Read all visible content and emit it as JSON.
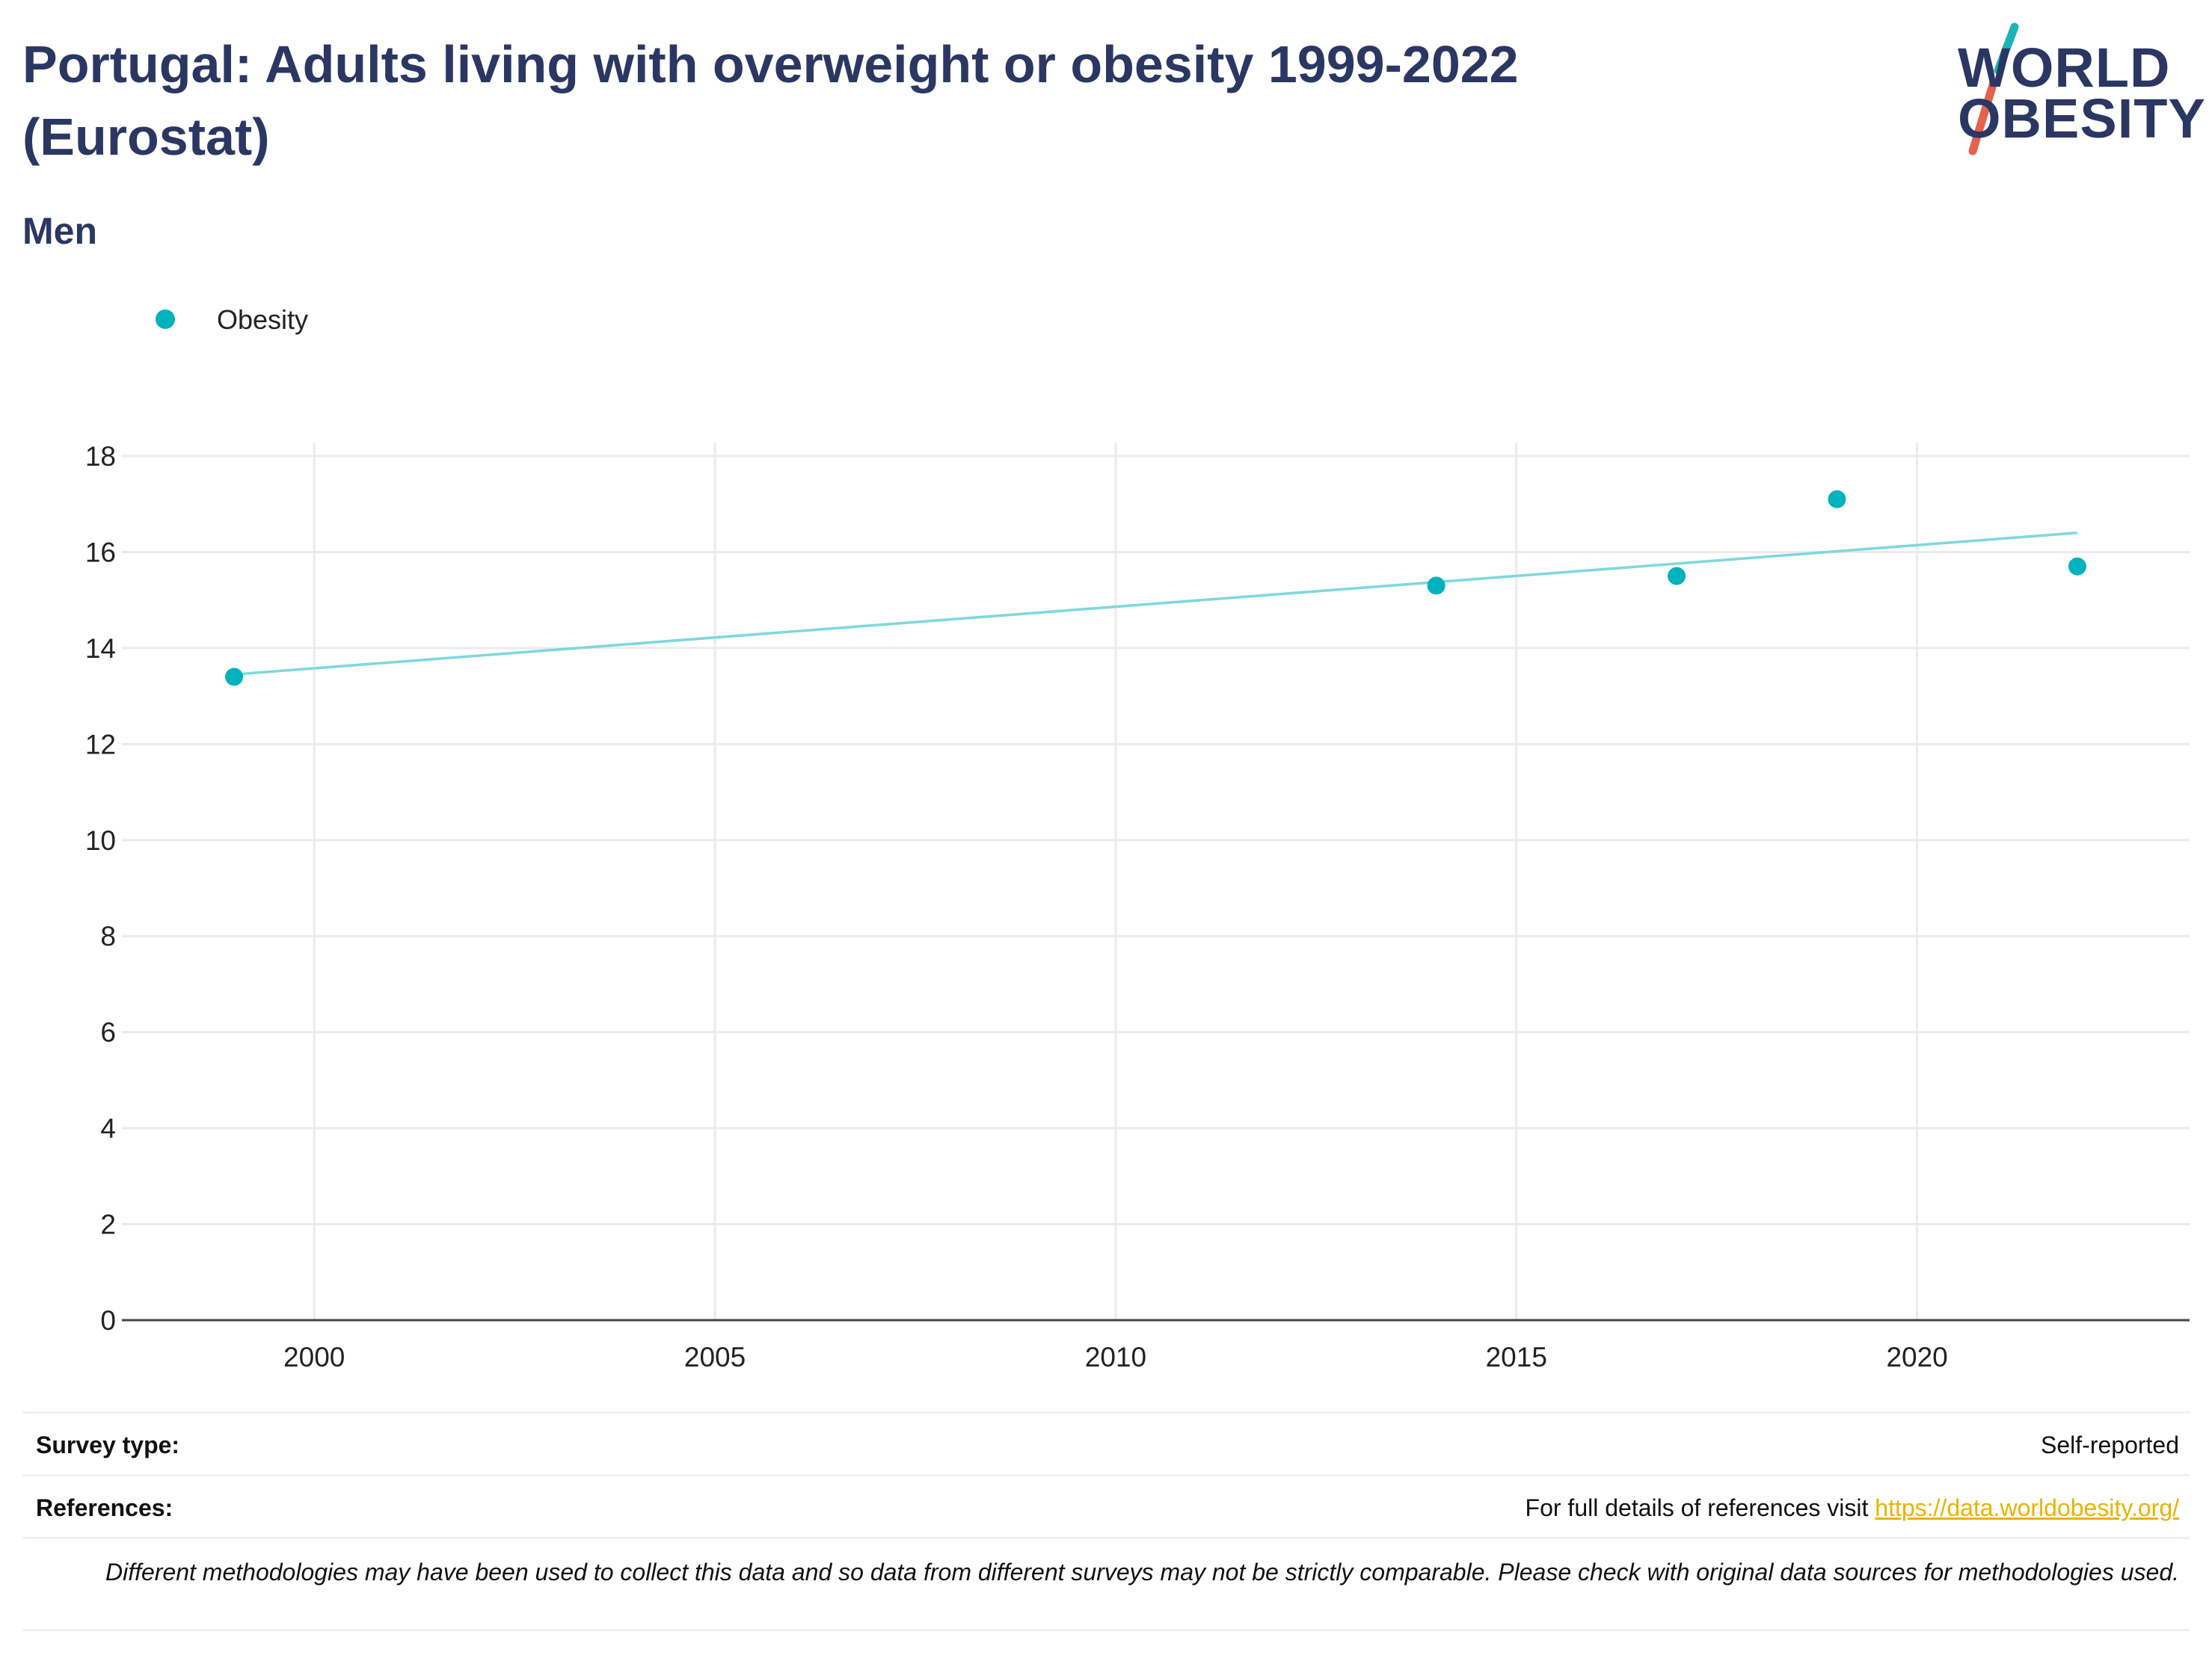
{
  "header": {
    "title": "Portugal: Adults living with overweight or obesity 1999-2022 (Eurostat)",
    "subtitle": "Men"
  },
  "logo": {
    "line1": "WORLD",
    "line2": "OBESITY",
    "colors": {
      "text": "#2b3763",
      "slash_top": "#1bb3b3",
      "slash_bottom": "#e5614d"
    }
  },
  "legend": {
    "label": "Obesity",
    "color": "#00b2bd"
  },
  "chart_data": {
    "type": "scatter",
    "title": "",
    "xlabel": "",
    "ylabel": "",
    "xlim": [
      1997.6,
      2023.4
    ],
    "ylim": [
      0,
      18
    ],
    "x_ticks": [
      2000,
      2005,
      2010,
      2015,
      2020
    ],
    "y_ticks": [
      0,
      2,
      4,
      6,
      8,
      10,
      12,
      14,
      16,
      18
    ],
    "grid": true,
    "legend_position": "top-left",
    "series": [
      {
        "name": "Obesity",
        "color": "#00b2bd",
        "x": [
          1999,
          2014,
          2017,
          2019,
          2022
        ],
        "y": [
          13.4,
          15.3,
          15.5,
          17.1,
          15.7
        ]
      }
    ],
    "trendline": {
      "color": "#7dd8dc",
      "x": [
        1999,
        2022
      ],
      "y": [
        13.45,
        16.4
      ]
    }
  },
  "footer": {
    "survey_type_label": "Survey type:",
    "survey_type_value": "Self-reported",
    "references_label": "References:",
    "references_text": "For full details of references visit ",
    "references_link": "https://data.worldobesity.org/",
    "note": "Different methodologies may have been used to collect this data and so data from different surveys may not be strictly comparable. Please check with original data sources for methodologies used."
  }
}
